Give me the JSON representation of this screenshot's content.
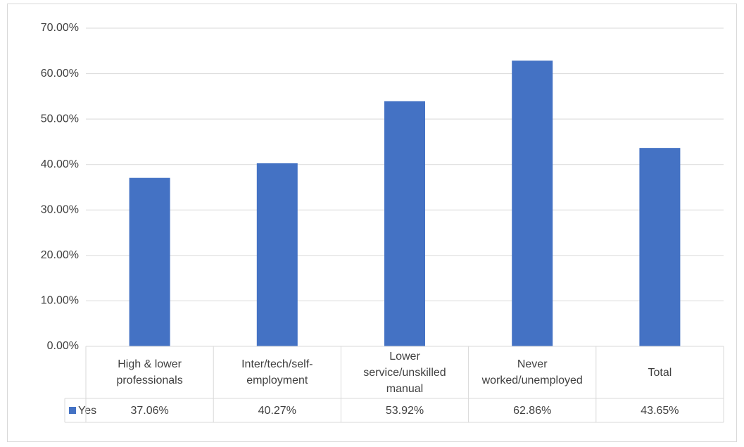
{
  "chart_data": {
    "type": "bar",
    "categories": [
      "High & lower professionals",
      "Inter/tech/self-employment",
      "Lower service/unskilled manual",
      "Never worked/unemployed",
      "Total"
    ],
    "series": [
      {
        "name": "Yes",
        "color": "#4472c4",
        "values": [
          37.06,
          40.27,
          53.92,
          62.86,
          43.65
        ],
        "value_labels": [
          "37.06%",
          "40.27%",
          "53.92%",
          "62.86%",
          "43.65%"
        ]
      }
    ],
    "ylim": [
      0,
      70
    ],
    "yticks": [
      {
        "value": 0,
        "label": "0.00%"
      },
      {
        "value": 10,
        "label": "10.00%"
      },
      {
        "value": 20,
        "label": "20.00%"
      },
      {
        "value": 30,
        "label": "30.00%"
      },
      {
        "value": 40,
        "label": "40.00%"
      },
      {
        "value": 50,
        "label": "50.00%"
      },
      {
        "value": 60,
        "label": "60.00%"
      },
      {
        "value": 70,
        "label": "70.00%"
      }
    ],
    "grid": true
  }
}
